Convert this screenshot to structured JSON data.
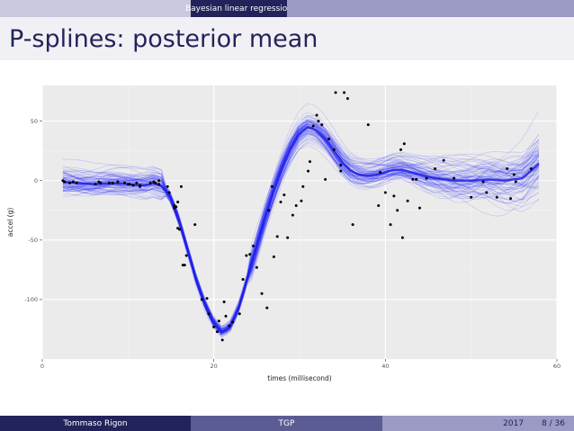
{
  "header": {
    "section": "Bayesian linear regression"
  },
  "slide": {
    "title": "P-splines: posterior mean"
  },
  "footer": {
    "author": "Tommaso Rigon",
    "short_title": "TGP",
    "year": "2017",
    "page": "8 / 36"
  },
  "chart_data": {
    "type": "scatter",
    "xlabel": "times (millisecond)",
    "ylabel": "accel (g)",
    "xlim": [
      0,
      60
    ],
    "ylim": [
      -150,
      80
    ],
    "x_ticks": [
      0,
      20,
      40,
      60
    ],
    "y_ticks": [
      -100,
      -50,
      0,
      50
    ],
    "grid": true,
    "point_color": "#000000",
    "curve_color": "#2a2aff",
    "posterior_mean": {
      "x": [
        2.4,
        4,
        6,
        8,
        10,
        12,
        13,
        14,
        15,
        16,
        17,
        18,
        19,
        20,
        21,
        22,
        23,
        24,
        25,
        26,
        27,
        28,
        29,
        30,
        31,
        32,
        33,
        34,
        35,
        36,
        37,
        38,
        39,
        40,
        41,
        42,
        43,
        44,
        45,
        46,
        48,
        50,
        52,
        54,
        56,
        58
      ],
      "y": [
        -1,
        -2,
        -3,
        -2,
        -3,
        -4,
        -2,
        -5,
        -15,
        -35,
        -60,
        -85,
        -105,
        -120,
        -128,
        -122,
        -105,
        -80,
        -55,
        -30,
        -8,
        12,
        28,
        40,
        45,
        42,
        35,
        25,
        15,
        8,
        5,
        4,
        5,
        7,
        9,
        9,
        7,
        5,
        3,
        2,
        0,
        0,
        1,
        0,
        2,
        15
      ]
    },
    "observations": {
      "x": [
        2.4,
        2.6,
        3.2,
        3.6,
        4.0,
        6.2,
        6.6,
        6.8,
        7.8,
        8.2,
        8.8,
        9.6,
        10.0,
        10.2,
        10.6,
        11.0,
        11.4,
        11.4,
        12.6,
        13.0,
        13.2,
        13.6,
        13.6,
        14.6,
        14.8,
        15.4,
        15.4,
        15.4,
        15.6,
        15.8,
        15.8,
        16.0,
        16.2,
        16.4,
        16.6,
        16.8,
        17.8,
        18.6,
        19.2,
        19.4,
        20.0,
        20.4,
        20.6,
        21.0,
        21.2,
        21.4,
        21.8,
        22.2,
        23.0,
        23.4,
        23.8,
        24.2,
        24.6,
        25.0,
        25.6,
        26.2,
        26.4,
        26.8,
        27.0,
        27.4,
        27.8,
        28.2,
        28.6,
        29.2,
        29.6,
        30.2,
        30.4,
        31.0,
        31.2,
        31.6,
        32.0,
        32.2,
        32.6,
        33.0,
        33.4,
        34.0,
        34.2,
        34.8,
        34.8,
        35.2,
        35.6,
        36.2,
        38.0,
        39.2,
        39.4,
        40.0,
        40.6,
        41.0,
        41.4,
        41.8,
        42.0,
        42.2,
        42.6,
        43.2,
        43.6,
        44.0,
        44.8,
        45.8,
        46.8,
        48.0,
        50.0,
        51.4,
        51.8,
        53.0,
        54.2,
        54.6,
        55.0,
        55.2,
        57.0
      ],
      "y": [
        0,
        -1,
        -2,
        -1,
        -2,
        -3,
        -1,
        -2,
        -2,
        -2,
        -1,
        -2,
        -3,
        -3,
        -4,
        -2,
        -4,
        -5,
        -2,
        -1,
        -2,
        0,
        -3,
        -5,
        -10,
        -21,
        -22,
        -23,
        -22,
        -18,
        -40,
        -41,
        -5,
        -71,
        -71,
        -63,
        -37,
        -100,
        -99,
        -112,
        -123,
        -127,
        -118,
        -134,
        -102,
        -114,
        -122,
        -119,
        -112,
        -83,
        -63,
        -62,
        -55,
        -73,
        -95,
        -107,
        -25,
        -5,
        -64,
        -47,
        -18,
        -12,
        -48,
        -29,
        -21,
        -17,
        -5,
        8,
        16,
        46,
        55,
        50,
        47,
        1,
        35,
        26,
        74,
        8,
        13,
        74,
        69,
        -37,
        47,
        -21,
        7,
        -10,
        -37,
        -13,
        -25,
        26,
        -48,
        31,
        -17,
        1,
        1,
        -23,
        2,
        10,
        17,
        2,
        -14,
        -1,
        -10,
        -14,
        10,
        -15,
        5,
        -1,
        10
      ]
    }
  }
}
